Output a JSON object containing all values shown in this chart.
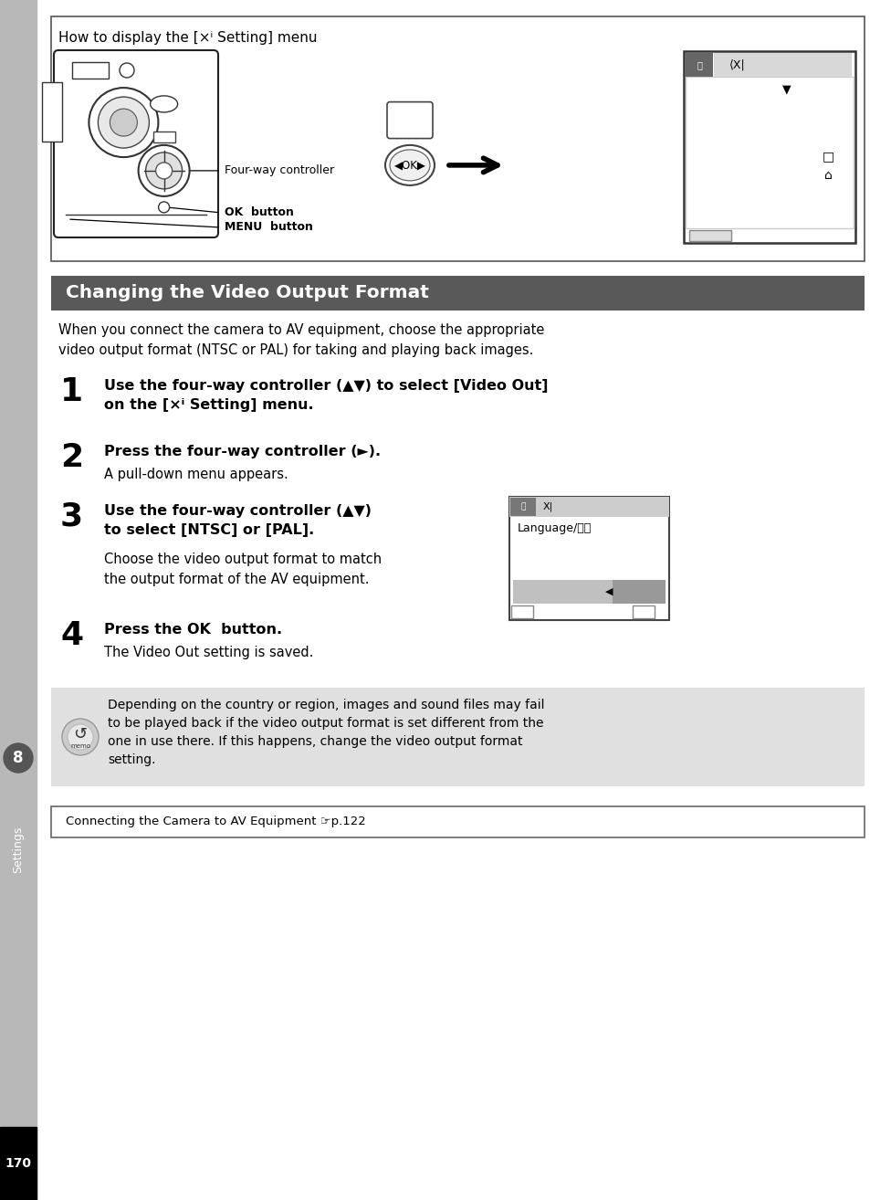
{
  "page_bg": "#ffffff",
  "sidebar_bg": "#b8b8b8",
  "page_number": "170",
  "sidebar_label": "Settings",
  "sidebar_num": "8",
  "section_title": "Changing the Video Output Format",
  "section_bg": "#595959",
  "section_fg": "#ffffff",
  "intro": "When you connect the camera to AV equipment, choose the appropriate\nvideo output format (NTSC or PAL) for taking and playing back images.",
  "step1_bold": "Use the four-way controller (▲▼) to select [Video Out]\non the [×ⁱ Setting] menu.",
  "step2_bold": "Press the four-way controller (►).",
  "step2_normal": "A pull-down menu appears.",
  "step3_bold": "Use the four-way controller (▲▼)\nto select [NTSC] or [PAL].",
  "step3_normal": "Choose the video output format to match\nthe output format of the AV equipment.",
  "step4_bold": "Press the OK  button.",
  "step4_normal": "The Video Out setting is saved.",
  "memo_bg": "#e0e0e0",
  "memo_text": "Depending on the country or region, images and sound files may fail\nto be played back if the video output format is set different from the\none in use there. If this happens, change the video output format\nsetting.",
  "ref_text": "Connecting the Camera to AV Equipment ☞p.122",
  "top_box_title": "How to display the [×ⁱ Setting] menu",
  "lbl_fourway": "Four-way controller",
  "lbl_ok": "OK  button",
  "lbl_menu": "MENU  button"
}
